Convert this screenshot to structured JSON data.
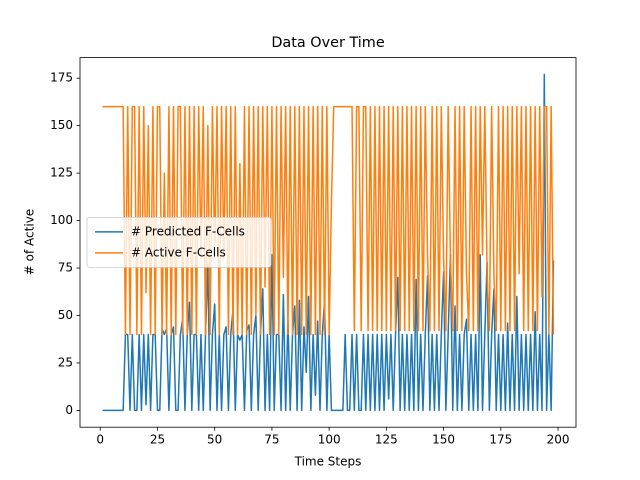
{
  "chart_data": {
    "type": "line",
    "title": "Data Over Time",
    "xlabel": "Time Steps",
    "ylabel": "# of Active",
    "x": [
      1,
      2,
      3,
      4,
      5,
      6,
      7,
      8,
      9,
      10,
      11,
      12,
      13,
      14,
      15,
      16,
      17,
      18,
      19,
      20,
      21,
      22,
      23,
      24,
      25,
      26,
      27,
      28,
      29,
      30,
      31,
      32,
      33,
      34,
      35,
      36,
      37,
      38,
      39,
      40,
      41,
      42,
      43,
      44,
      45,
      46,
      47,
      48,
      49,
      50,
      51,
      52,
      53,
      54,
      55,
      56,
      57,
      58,
      59,
      60,
      61,
      62,
      63,
      64,
      65,
      66,
      67,
      68,
      69,
      70,
      71,
      72,
      73,
      74,
      75,
      76,
      77,
      78,
      79,
      80,
      81,
      82,
      83,
      84,
      85,
      86,
      87,
      88,
      89,
      90,
      91,
      92,
      93,
      94,
      95,
      96,
      97,
      98,
      99,
      100,
      101,
      102,
      103,
      104,
      105,
      106,
      107,
      108,
      109,
      110,
      111,
      112,
      113,
      114,
      115,
      116,
      117,
      118,
      119,
      120,
      121,
      122,
      123,
      124,
      125,
      126,
      127,
      128,
      129,
      130,
      131,
      132,
      133,
      134,
      135,
      136,
      137,
      138,
      139,
      140,
      141,
      142,
      143,
      144,
      145,
      146,
      147,
      148,
      149,
      150,
      151,
      152,
      153,
      154,
      155,
      156,
      157,
      158,
      159,
      160,
      161,
      162,
      163,
      164,
      165,
      166,
      167,
      168,
      169,
      170,
      171,
      172,
      173,
      174,
      175,
      176,
      177,
      178,
      179,
      180,
      181,
      182,
      183,
      184,
      185,
      186,
      187,
      188,
      189,
      190,
      191,
      192,
      193,
      194,
      195,
      196,
      197,
      198
    ],
    "series": [
      {
        "name": "# Predicted F-Cells",
        "color": "#1f77b4",
        "values": [
          0,
          0,
          0,
          0,
          0,
          0,
          0,
          0,
          0,
          0,
          40,
          40,
          0,
          40,
          0,
          0,
          40,
          0,
          40,
          3,
          40,
          0,
          40,
          40,
          0,
          0,
          43,
          40,
          43,
          0,
          40,
          44,
          0,
          0,
          40,
          48,
          0,
          40,
          57,
          0,
          40,
          40,
          0,
          40,
          0,
          40,
          77,
          0,
          40,
          56,
          0,
          40,
          0,
          40,
          44,
          0,
          40,
          53,
          0,
          40,
          37,
          40,
          0,
          42,
          45,
          0,
          40,
          50,
          0,
          40,
          64,
          0,
          40,
          0,
          82,
          0,
          40,
          40,
          0,
          61,
          0,
          48,
          0,
          40,
          55,
          0,
          58,
          0,
          44,
          20,
          60,
          0,
          40,
          8,
          47,
          0,
          40,
          58,
          0,
          40,
          0,
          0,
          0,
          0,
          0,
          0,
          40,
          0,
          0,
          40,
          0,
          40,
          0,
          0,
          40,
          0,
          40,
          0,
          40,
          0,
          40,
          0,
          40,
          0,
          40,
          6,
          40,
          0,
          40,
          70,
          0,
          40,
          0,
          40,
          0,
          40,
          0,
          69,
          0,
          40,
          0,
          40,
          71,
          0,
          40,
          0,
          40,
          0,
          40,
          73,
          0,
          40,
          82,
          0,
          55,
          0,
          40,
          0,
          40,
          48,
          0,
          40,
          0,
          40,
          0,
          82,
          0,
          40,
          78,
          0,
          40,
          64,
          0,
          40,
          0,
          40,
          0,
          46,
          0,
          40,
          0,
          60,
          0,
          40,
          0,
          40,
          0,
          40,
          0,
          52,
          0,
          40,
          0,
          177,
          0,
          40,
          0,
          79
        ]
      },
      {
        "name": "# Active F-Cells",
        "color": "#ff7f0e",
        "values": [
          160,
          160,
          160,
          160,
          160,
          160,
          160,
          160,
          160,
          160,
          40,
          160,
          40,
          160,
          160,
          40,
          160,
          40,
          160,
          62,
          150,
          40,
          160,
          40,
          160,
          160,
          40,
          125,
          40,
          160,
          40,
          160,
          40,
          160,
          160,
          40,
          160,
          40,
          160,
          40,
          160,
          40,
          160,
          80,
          160,
          40,
          150,
          40,
          160,
          80,
          160,
          40,
          160,
          80,
          160,
          40,
          160,
          40,
          160,
          40,
          130,
          40,
          160,
          40,
          160,
          40,
          160,
          50,
          160,
          40,
          160,
          65,
          160,
          40,
          160,
          40,
          160,
          40,
          160,
          70,
          160,
          40,
          160,
          40,
          160,
          40,
          160,
          40,
          160,
          40,
          160,
          40,
          160,
          40,
          160,
          40,
          160,
          40,
          160,
          40,
          110,
          160,
          160,
          160,
          160,
          160,
          160,
          160,
          160,
          160,
          42,
          160,
          160,
          42,
          160,
          160,
          42,
          160,
          42,
          160,
          42,
          160,
          42,
          160,
          42,
          160,
          42,
          160,
          42,
          160,
          42,
          160,
          42,
          160,
          42,
          160,
          42,
          160,
          42,
          160,
          42,
          160,
          80,
          42,
          160,
          42,
          160,
          42,
          160,
          80,
          42,
          160,
          80,
          42,
          160,
          42,
          160,
          42,
          160,
          72,
          42,
          160,
          42,
          160,
          42,
          160,
          82,
          160,
          72,
          42,
          160,
          70,
          42,
          160,
          42,
          160,
          42,
          160,
          42,
          160,
          42,
          160,
          72,
          160,
          42,
          160,
          42,
          160,
          42,
          160,
          42,
          160,
          60,
          160,
          160,
          40,
          160,
          40
        ]
      }
    ],
    "xlim": [
      -8.85,
      207.85
    ],
    "ylim": [
      -8.85,
      185.85
    ],
    "xticks": [
      0,
      25,
      50,
      75,
      100,
      125,
      150,
      175,
      200
    ],
    "yticks": [
      0,
      25,
      50,
      75,
      100,
      125,
      150,
      175
    ],
    "legend": "center left"
  }
}
